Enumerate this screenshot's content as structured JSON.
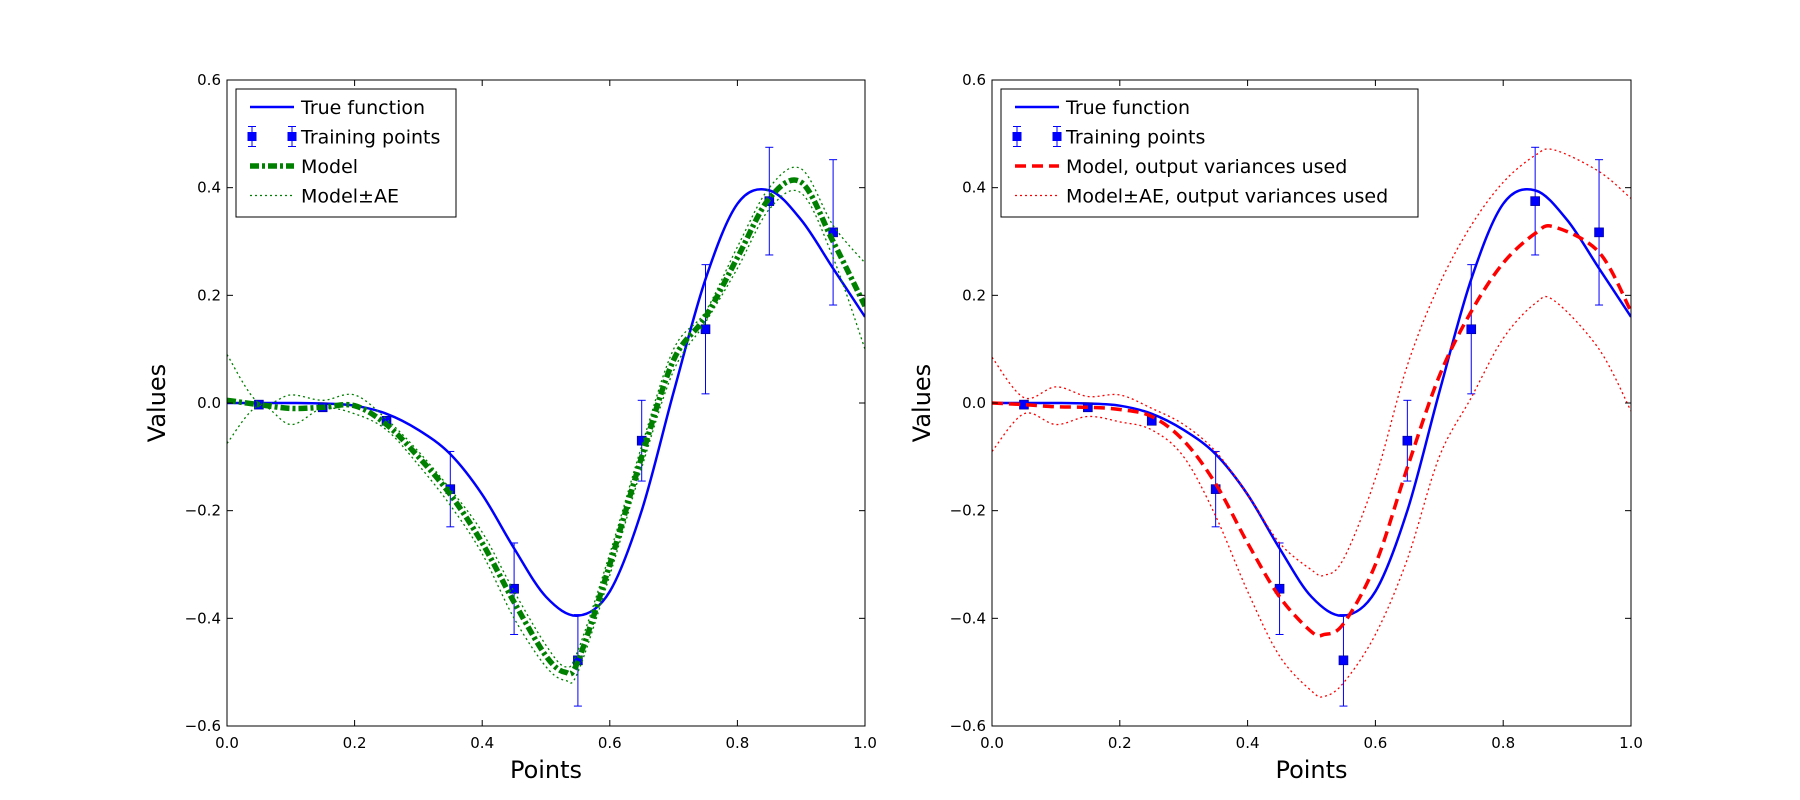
{
  "chart_data": [
    {
      "type": "line",
      "title": "",
      "xlabel": "Points",
      "ylabel": "Values",
      "xlim": [
        0.0,
        1.0
      ],
      "ylim": [
        -0.6,
        0.6
      ],
      "xticks": [
        "0.0",
        "0.2",
        "0.4",
        "0.6",
        "0.8",
        "1.0"
      ],
      "yticks": [
        "−0.6",
        "−0.4",
        "−0.2",
        "0.0",
        "0.2",
        "0.4",
        "0.6"
      ],
      "grid": false,
      "legend_position": "top-left",
      "legend": [
        {
          "label": "True function",
          "style": "solid",
          "color": "#0000ff"
        },
        {
          "label": "Training points",
          "style": "marker-errorbar",
          "color": "#0000ff"
        },
        {
          "label": "Model",
          "style": "thick-dashdot",
          "color": "#008000"
        },
        {
          "label": "Model±AE",
          "style": "dotted",
          "color": "#008000"
        }
      ],
      "series": [
        {
          "name": "True function",
          "color": "#0000ff",
          "style": "solid",
          "x": [
            0.0,
            0.05,
            0.1,
            0.15,
            0.2,
            0.25,
            0.3,
            0.35,
            0.4,
            0.45,
            0.5,
            0.55,
            0.6,
            0.65,
            0.7,
            0.75,
            0.8,
            0.85,
            0.9,
            0.95,
            1.0
          ],
          "y": [
            0.0,
            0.0,
            0.0,
            -0.001,
            -0.005,
            -0.02,
            -0.05,
            -0.095,
            -0.17,
            -0.27,
            -0.36,
            -0.395,
            -0.35,
            -0.2,
            0.02,
            0.23,
            0.37,
            0.395,
            0.34,
            0.25,
            0.16
          ]
        },
        {
          "name": "Training points",
          "color": "#0000ff",
          "style": "marker-errorbar",
          "x": [
            0.05,
            0.15,
            0.25,
            0.35,
            0.45,
            0.55,
            0.65,
            0.75,
            0.85,
            0.95
          ],
          "y": [
            -0.003,
            -0.008,
            -0.033,
            -0.16,
            -0.345,
            -0.478,
            -0.07,
            0.137,
            0.375,
            0.317
          ],
          "err": [
            0.0,
            0.0,
            0.0,
            0.07,
            0.085,
            0.085,
            0.075,
            0.12,
            0.1,
            0.135
          ]
        },
        {
          "name": "Model",
          "color": "#008000",
          "style": "thick-dashdot",
          "x": [
            0.0,
            0.05,
            0.1,
            0.15,
            0.2,
            0.25,
            0.3,
            0.35,
            0.4,
            0.45,
            0.5,
            0.53,
            0.55,
            0.6,
            0.65,
            0.7,
            0.75,
            0.8,
            0.85,
            0.9,
            0.95,
            1.0
          ],
          "y": [
            0.005,
            -0.003,
            -0.01,
            -0.008,
            -0.005,
            -0.04,
            -0.1,
            -0.17,
            -0.26,
            -0.37,
            -0.47,
            -0.5,
            -0.48,
            -0.3,
            -0.1,
            0.08,
            0.16,
            0.27,
            0.38,
            0.41,
            0.3,
            0.18
          ]
        },
        {
          "name": "Model±AE upper",
          "color": "#008000",
          "style": "dotted",
          "x": [
            0.0,
            0.05,
            0.1,
            0.15,
            0.2,
            0.25,
            0.3,
            0.35,
            0.4,
            0.45,
            0.5,
            0.53,
            0.55,
            0.6,
            0.65,
            0.7,
            0.75,
            0.8,
            0.85,
            0.9,
            0.95,
            1.0
          ],
          "y": [
            0.09,
            0.0,
            0.015,
            0.005,
            0.015,
            -0.03,
            -0.09,
            -0.16,
            -0.24,
            -0.35,
            -0.45,
            -0.49,
            -0.46,
            -0.28,
            -0.08,
            0.1,
            0.17,
            0.29,
            0.4,
            0.435,
            0.33,
            0.26
          ]
        },
        {
          "name": "Model±AE lower",
          "color": "#008000",
          "style": "dotted",
          "x": [
            0.0,
            0.05,
            0.1,
            0.15,
            0.2,
            0.25,
            0.3,
            0.35,
            0.4,
            0.45,
            0.5,
            0.53,
            0.55,
            0.6,
            0.65,
            0.7,
            0.75,
            0.8,
            0.85,
            0.9,
            0.95,
            1.0
          ],
          "y": [
            -0.075,
            -0.005,
            -0.04,
            -0.01,
            -0.02,
            -0.05,
            -0.115,
            -0.19,
            -0.28,
            -0.4,
            -0.49,
            -0.515,
            -0.5,
            -0.32,
            -0.12,
            0.06,
            0.15,
            0.25,
            0.36,
            0.39,
            0.27,
            0.1
          ]
        }
      ]
    },
    {
      "type": "line",
      "title": "",
      "xlabel": "Points",
      "ylabel": "Values",
      "xlim": [
        0.0,
        1.0
      ],
      "ylim": [
        -0.6,
        0.6
      ],
      "xticks": [
        "0.0",
        "0.2",
        "0.4",
        "0.6",
        "0.8",
        "1.0"
      ],
      "yticks": [
        "−0.6",
        "−0.4",
        "−0.2",
        "0.0",
        "0.2",
        "0.4",
        "0.6"
      ],
      "grid": false,
      "legend_position": "top-left",
      "legend": [
        {
          "label": "True function",
          "style": "solid",
          "color": "#0000ff"
        },
        {
          "label": "Training points",
          "style": "marker-errorbar",
          "color": "#0000ff"
        },
        {
          "label": "Model, output variances used",
          "style": "dashed",
          "color": "#ff0000"
        },
        {
          "label": "Model±AE, output variances used",
          "style": "dotted",
          "color": "#ff0000"
        }
      ],
      "series": [
        {
          "name": "True function",
          "color": "#0000ff",
          "style": "solid",
          "x": [
            0.0,
            0.05,
            0.1,
            0.15,
            0.2,
            0.25,
            0.3,
            0.35,
            0.4,
            0.45,
            0.5,
            0.55,
            0.6,
            0.65,
            0.7,
            0.75,
            0.8,
            0.85,
            0.9,
            0.95,
            1.0
          ],
          "y": [
            0.0,
            0.0,
            0.0,
            -0.001,
            -0.005,
            -0.02,
            -0.05,
            -0.095,
            -0.17,
            -0.27,
            -0.36,
            -0.395,
            -0.35,
            -0.2,
            0.02,
            0.23,
            0.37,
            0.395,
            0.34,
            0.25,
            0.16
          ]
        },
        {
          "name": "Training points",
          "color": "#0000ff",
          "style": "marker-errorbar",
          "x": [
            0.05,
            0.15,
            0.25,
            0.35,
            0.45,
            0.55,
            0.65,
            0.75,
            0.85,
            0.95
          ],
          "y": [
            -0.003,
            -0.008,
            -0.033,
            -0.16,
            -0.345,
            -0.478,
            -0.07,
            0.137,
            0.375,
            0.317
          ],
          "err": [
            0.0,
            0.0,
            0.0,
            0.07,
            0.085,
            0.085,
            0.075,
            0.12,
            0.1,
            0.135
          ]
        },
        {
          "name": "Model, output variances used",
          "color": "#ff0000",
          "style": "dashed",
          "x": [
            0.0,
            0.05,
            0.1,
            0.15,
            0.2,
            0.25,
            0.3,
            0.35,
            0.4,
            0.45,
            0.5,
            0.52,
            0.55,
            0.6,
            0.65,
            0.7,
            0.75,
            0.8,
            0.85,
            0.88,
            0.95,
            1.0
          ],
          "y": [
            0.0,
            -0.003,
            -0.007,
            -0.008,
            -0.012,
            -0.025,
            -0.07,
            -0.15,
            -0.26,
            -0.36,
            -0.425,
            -0.43,
            -0.41,
            -0.3,
            -0.12,
            0.05,
            0.17,
            0.26,
            0.315,
            0.327,
            0.28,
            0.17
          ]
        },
        {
          "name": "Model±AE upper",
          "color": "#ff0000",
          "style": "dotted",
          "x": [
            0.0,
            0.05,
            0.1,
            0.15,
            0.2,
            0.25,
            0.3,
            0.35,
            0.4,
            0.45,
            0.5,
            0.52,
            0.55,
            0.6,
            0.65,
            0.7,
            0.75,
            0.8,
            0.85,
            0.88,
            0.95,
            1.0
          ],
          "y": [
            0.085,
            0.01,
            0.03,
            0.012,
            0.015,
            -0.01,
            -0.04,
            -0.09,
            -0.17,
            -0.26,
            -0.31,
            -0.32,
            -0.29,
            -0.14,
            0.07,
            0.22,
            0.33,
            0.41,
            0.46,
            0.47,
            0.43,
            0.38
          ]
        },
        {
          "name": "Model±AE lower",
          "color": "#ff0000",
          "style": "dotted",
          "x": [
            0.0,
            0.05,
            0.1,
            0.15,
            0.2,
            0.25,
            0.3,
            0.35,
            0.4,
            0.45,
            0.5,
            0.52,
            0.55,
            0.6,
            0.65,
            0.7,
            0.75,
            0.8,
            0.85,
            0.88,
            0.95,
            1.0
          ],
          "y": [
            -0.09,
            -0.02,
            -0.04,
            -0.025,
            -0.035,
            -0.05,
            -0.1,
            -0.21,
            -0.35,
            -0.47,
            -0.535,
            -0.545,
            -0.52,
            -0.43,
            -0.29,
            -0.1,
            0.01,
            0.12,
            0.185,
            0.19,
            0.1,
            -0.015
          ]
        }
      ]
    }
  ]
}
